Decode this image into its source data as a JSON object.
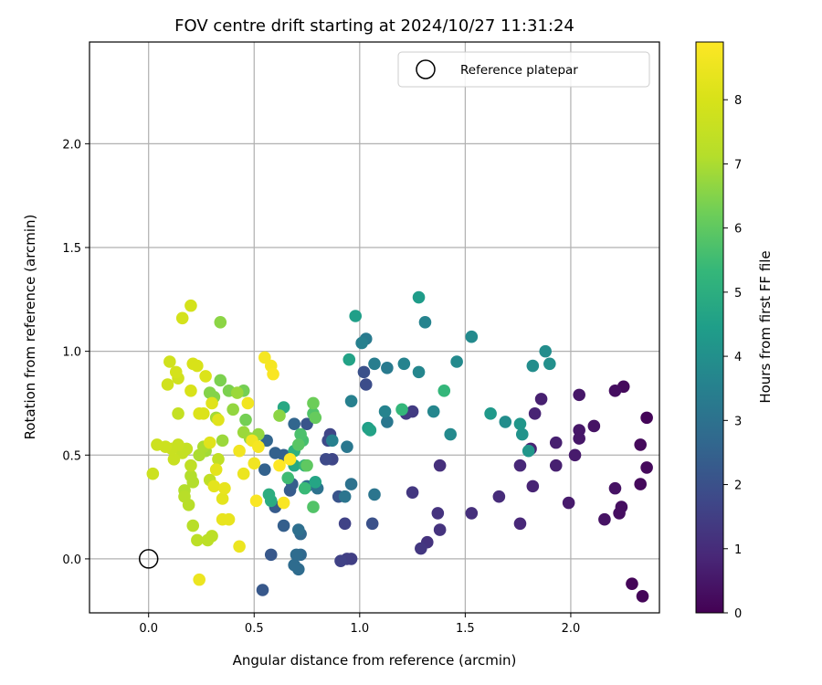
{
  "chart_data": {
    "type": "scatter",
    "title": "FOV centre drift starting at 2024/10/27 11:31:24",
    "xlabel": "Angular distance from reference (arcmin)",
    "ylabel": "Rotation from reference (arcmin)",
    "xlim": [
      -0.28,
      2.42
    ],
    "ylim": [
      -0.26,
      2.49
    ],
    "xticks": [
      0.0,
      0.5,
      1.0,
      1.5,
      2.0
    ],
    "xtick_labels": [
      "0.0",
      "0.5",
      "1.0",
      "1.5",
      "2.0"
    ],
    "yticks": [
      0.0,
      0.5,
      1.0,
      1.5,
      2.0
    ],
    "ytick_labels": [
      "0.0",
      "0.5",
      "1.0",
      "1.5",
      "2.0"
    ],
    "grid": true,
    "legend": {
      "placement": "top-right",
      "entries": [
        "Reference platepar"
      ]
    },
    "reference_point": {
      "name": "Reference platepar",
      "x": 0.0,
      "y": 0.0,
      "marker": "open-circle"
    },
    "colorbar": {
      "label": "Hours from first FF file",
      "colormap": "viridis",
      "range": [
        0,
        8.9
      ],
      "ticks": [
        0,
        1,
        2,
        3,
        4,
        5,
        6,
        7,
        8
      ],
      "tick_labels": [
        "0",
        "1",
        "2",
        "3",
        "4",
        "5",
        "6",
        "7",
        "8"
      ],
      "placement": "right"
    },
    "point_fields": [
      "x",
      "y",
      "hours"
    ],
    "points": [
      [
        2.34,
        -0.18,
        0.1
      ],
      [
        2.29,
        -0.12,
        0.1
      ],
      [
        2.36,
        0.68,
        0.1
      ],
      [
        2.36,
        0.44,
        0.2
      ],
      [
        2.33,
        0.55,
        0.2
      ],
      [
        2.33,
        0.36,
        0.2
      ],
      [
        2.25,
        0.83,
        0.2
      ],
      [
        2.21,
        0.81,
        0.3
      ],
      [
        2.24,
        0.25,
        0.3
      ],
      [
        2.23,
        0.22,
        0.3
      ],
      [
        2.21,
        0.34,
        0.4
      ],
      [
        2.16,
        0.19,
        0.4
      ],
      [
        2.11,
        0.64,
        0.4
      ],
      [
        2.04,
        0.79,
        0.5
      ],
      [
        2.04,
        0.62,
        0.5
      ],
      [
        2.04,
        0.58,
        0.5
      ],
      [
        2.02,
        0.5,
        0.6
      ],
      [
        1.99,
        0.27,
        0.6
      ],
      [
        1.93,
        0.56,
        0.7
      ],
      [
        1.93,
        0.45,
        0.7
      ],
      [
        1.86,
        0.77,
        0.7
      ],
      [
        1.83,
        0.7,
        0.8
      ],
      [
        1.82,
        0.35,
        0.8
      ],
      [
        1.81,
        0.53,
        0.8
      ],
      [
        1.76,
        0.17,
        0.9
      ],
      [
        1.76,
        0.45,
        0.9
      ],
      [
        1.66,
        0.3,
        1.0
      ],
      [
        1.53,
        0.22,
        1.1
      ],
      [
        1.38,
        0.45,
        1.1
      ],
      [
        1.37,
        0.22,
        1.2
      ],
      [
        1.38,
        0.14,
        1.2
      ],
      [
        1.32,
        0.08,
        1.2
      ],
      [
        1.29,
        0.05,
        1.3
      ],
      [
        1.25,
        0.32,
        1.3
      ],
      [
        1.25,
        0.71,
        1.4
      ],
      [
        1.22,
        0.7,
        1.4
      ],
      [
        0.96,
        -0.0,
        1.5
      ],
      [
        0.94,
        0.0,
        1.5
      ],
      [
        0.91,
        -0.01,
        1.6
      ],
      [
        0.93,
        0.17,
        1.6
      ],
      [
        0.86,
        0.6,
        1.7
      ],
      [
        0.87,
        0.48,
        1.7
      ],
      [
        0.84,
        0.48,
        1.8
      ],
      [
        0.85,
        0.57,
        1.8
      ],
      [
        1.03,
        0.84,
        1.9
      ],
      [
        1.02,
        0.9,
        2.0
      ],
      [
        1.06,
        0.17,
        2.0
      ],
      [
        0.75,
        0.65,
        2.1
      ],
      [
        0.9,
        0.3,
        2.1
      ],
      [
        0.58,
        0.02,
        2.2
      ],
      [
        0.54,
        -0.15,
        2.2
      ],
      [
        0.6,
        0.25,
        2.3
      ],
      [
        0.67,
        0.33,
        2.3
      ],
      [
        0.68,
        0.36,
        2.4
      ],
      [
        0.64,
        0.16,
        2.4
      ],
      [
        0.64,
        0.5,
        2.5
      ],
      [
        0.6,
        0.51,
        2.5
      ],
      [
        0.55,
        0.43,
        2.5
      ],
      [
        0.56,
        0.57,
        2.6
      ],
      [
        0.69,
        0.65,
        2.6
      ],
      [
        0.72,
        0.12,
        2.7
      ],
      [
        0.72,
        0.02,
        2.7
      ],
      [
        0.7,
        0.02,
        2.8
      ],
      [
        0.71,
        -0.05,
        2.8
      ],
      [
        0.69,
        -0.03,
        2.8
      ],
      [
        0.71,
        0.14,
        2.9
      ],
      [
        0.75,
        0.35,
        2.9
      ],
      [
        0.8,
        0.34,
        3.0
      ],
      [
        0.96,
        0.36,
        3.0
      ],
      [
        0.93,
        0.3,
        3.1
      ],
      [
        1.07,
        0.31,
        3.1
      ],
      [
        0.94,
        0.54,
        3.2
      ],
      [
        1.13,
        0.66,
        3.2
      ],
      [
        1.13,
        0.92,
        3.3
      ],
      [
        1.03,
        1.06,
        3.3
      ],
      [
        1.07,
        0.94,
        3.4
      ],
      [
        1.01,
        1.04,
        3.5
      ],
      [
        0.96,
        0.76,
        3.5
      ],
      [
        0.87,
        0.57,
        3.5
      ],
      [
        1.12,
        0.71,
        3.6
      ],
      [
        1.21,
        0.94,
        3.6
      ],
      [
        1.31,
        1.14,
        3.6
      ],
      [
        1.28,
        0.9,
        3.7
      ],
      [
        1.35,
        0.71,
        3.7
      ],
      [
        1.43,
        0.6,
        3.8
      ],
      [
        1.46,
        0.95,
        3.8
      ],
      [
        1.53,
        1.07,
        3.8
      ],
      [
        1.69,
        0.66,
        3.9
      ],
      [
        1.82,
        0.93,
        3.9
      ],
      [
        1.88,
        1.0,
        3.9
      ],
      [
        1.9,
        0.94,
        4.0
      ],
      [
        1.77,
        0.6,
        4.1
      ],
      [
        1.8,
        0.52,
        4.2
      ],
      [
        1.76,
        0.65,
        4.2
      ],
      [
        1.62,
        0.7,
        4.3
      ],
      [
        1.28,
        1.26,
        4.4
      ],
      [
        1.04,
        0.63,
        4.5
      ],
      [
        0.98,
        1.17,
        4.5
      ],
      [
        1.05,
        0.62,
        4.6
      ],
      [
        0.95,
        0.96,
        4.6
      ],
      [
        0.79,
        0.37,
        4.7
      ],
      [
        0.69,
        0.45,
        4.8
      ],
      [
        0.64,
        0.73,
        4.8
      ],
      [
        0.58,
        0.28,
        4.9
      ],
      [
        0.57,
        0.31,
        5.0
      ],
      [
        0.69,
        0.52,
        5.1
      ],
      [
        0.74,
        0.45,
        5.2
      ],
      [
        1.2,
        0.72,
        5.3
      ],
      [
        1.4,
        0.81,
        5.3
      ],
      [
        0.74,
        0.34,
        5.4
      ],
      [
        0.66,
        0.39,
        5.5
      ],
      [
        0.73,
        0.57,
        5.6
      ],
      [
        0.72,
        0.6,
        5.7
      ],
      [
        0.78,
        0.25,
        5.8
      ],
      [
        0.78,
        0.7,
        5.8
      ],
      [
        0.71,
        0.55,
        5.9
      ],
      [
        0.75,
        0.45,
        6.0
      ],
      [
        0.79,
        0.68,
        6.1
      ],
      [
        0.78,
        0.75,
        6.2
      ],
      [
        0.46,
        0.67,
        6.3
      ],
      [
        0.45,
        0.81,
        6.3
      ],
      [
        0.38,
        0.81,
        6.4
      ],
      [
        0.34,
        0.86,
        6.4
      ],
      [
        0.31,
        0.78,
        6.5
      ],
      [
        0.29,
        0.8,
        6.5
      ],
      [
        0.34,
        1.14,
        6.6
      ],
      [
        0.62,
        0.69,
        6.6
      ],
      [
        0.52,
        0.6,
        6.7
      ],
      [
        0.48,
        0.58,
        6.7
      ],
      [
        0.4,
        0.72,
        6.7
      ],
      [
        0.42,
        0.8,
        6.8
      ],
      [
        0.45,
        0.61,
        6.8
      ],
      [
        0.35,
        0.57,
        6.8
      ],
      [
        0.32,
        0.68,
        6.9
      ],
      [
        0.27,
        0.52,
        6.9
      ],
      [
        0.26,
        0.54,
        7.0
      ],
      [
        0.24,
        0.5,
        7.0
      ],
      [
        0.21,
        0.37,
        7.1
      ],
      [
        0.2,
        0.4,
        7.1
      ],
      [
        0.17,
        0.33,
        7.1
      ],
      [
        0.17,
        0.3,
        7.2
      ],
      [
        0.19,
        0.26,
        7.2
      ],
      [
        0.21,
        0.16,
        7.2
      ],
      [
        0.23,
        0.09,
        7.3
      ],
      [
        0.28,
        0.09,
        7.3
      ],
      [
        0.3,
        0.11,
        7.3
      ],
      [
        0.29,
        0.38,
        7.4
      ],
      [
        0.33,
        0.48,
        7.4
      ],
      [
        0.2,
        0.45,
        7.4
      ],
      [
        0.18,
        0.53,
        7.5
      ],
      [
        0.16,
        0.51,
        7.5
      ],
      [
        0.14,
        0.7,
        7.5
      ],
      [
        0.14,
        0.55,
        7.6
      ],
      [
        0.12,
        0.48,
        7.6
      ],
      [
        0.11,
        0.53,
        7.6
      ],
      [
        0.08,
        0.54,
        7.7
      ],
      [
        0.04,
        0.55,
        7.7
      ],
      [
        0.02,
        0.41,
        7.7
      ],
      [
        0.09,
        0.84,
        7.8
      ],
      [
        0.1,
        0.95,
        7.8
      ],
      [
        0.14,
        0.87,
        7.8
      ],
      [
        0.13,
        0.9,
        7.9
      ],
      [
        0.16,
        1.16,
        7.9
      ],
      [
        0.2,
        1.22,
        7.9
      ],
      [
        0.21,
        0.94,
        8.0
      ],
      [
        0.23,
        0.93,
        8.0
      ],
      [
        0.2,
        0.81,
        8.0
      ],
      [
        0.24,
        0.7,
        8.1
      ],
      [
        0.26,
        0.7,
        8.1
      ],
      [
        0.27,
        0.88,
        8.1
      ],
      [
        0.3,
        0.75,
        8.2
      ],
      [
        0.29,
        0.56,
        8.2
      ],
      [
        0.33,
        0.67,
        8.2
      ],
      [
        0.32,
        0.43,
        8.3
      ],
      [
        0.31,
        0.35,
        8.3
      ],
      [
        0.35,
        0.29,
        8.3
      ],
      [
        0.36,
        0.34,
        8.4
      ],
      [
        0.35,
        0.19,
        8.4
      ],
      [
        0.38,
        0.19,
        8.4
      ],
      [
        0.43,
        0.06,
        8.5
      ],
      [
        0.24,
        -0.1,
        8.5
      ],
      [
        0.45,
        0.41,
        8.5
      ],
      [
        0.43,
        0.52,
        8.6
      ],
      [
        0.47,
        0.75,
        8.6
      ],
      [
        0.49,
        0.57,
        8.6
      ],
      [
        0.5,
        0.46,
        8.6
      ],
      [
        0.52,
        0.54,
        8.7
      ],
      [
        0.55,
        0.97,
        8.7
      ],
      [
        0.58,
        0.93,
        8.7
      ],
      [
        0.59,
        0.89,
        8.8
      ],
      [
        0.51,
        0.28,
        8.8
      ],
      [
        0.64,
        0.27,
        8.8
      ],
      [
        0.67,
        0.48,
        8.9
      ],
      [
        0.62,
        0.45,
        8.9
      ]
    ]
  }
}
